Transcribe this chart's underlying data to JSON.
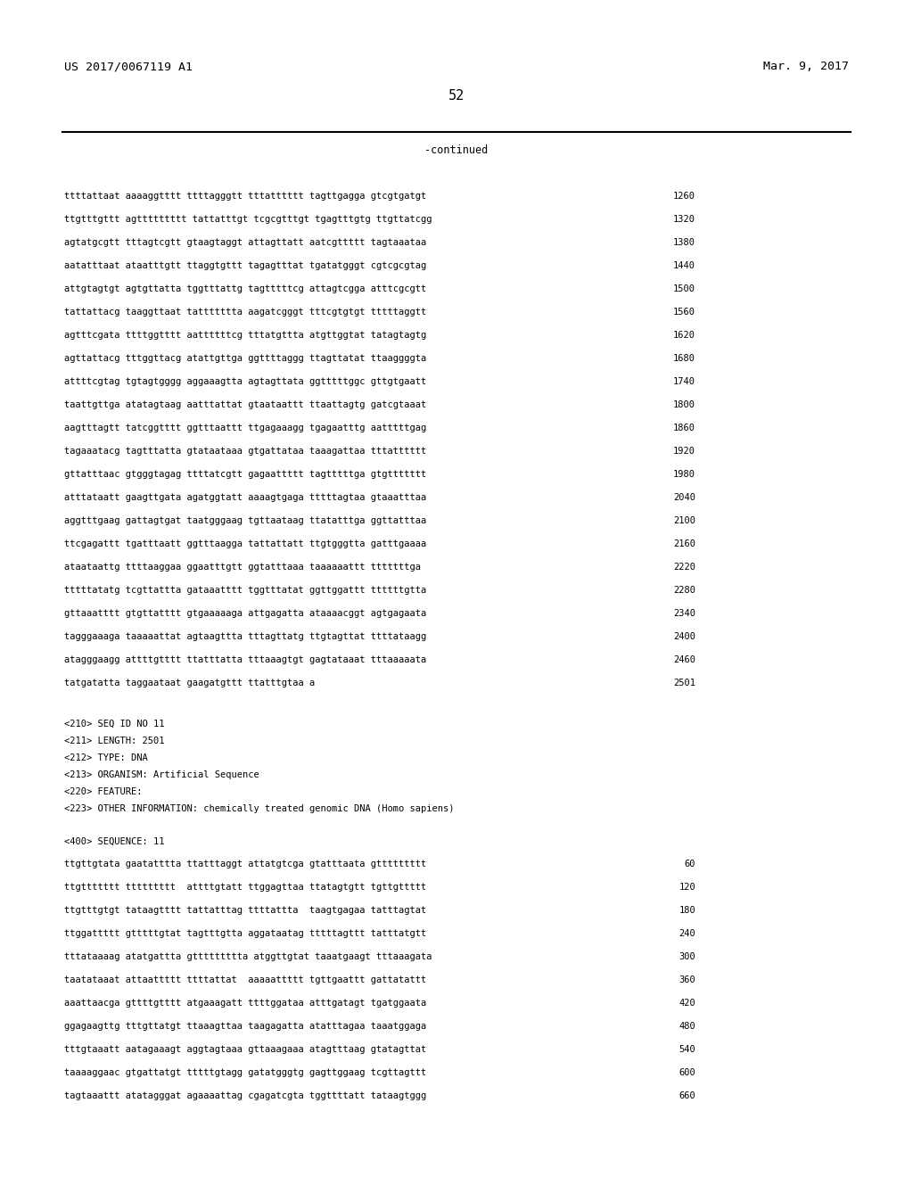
{
  "left_header": "US 2017/0067119 A1",
  "right_header": "Mar. 9, 2017",
  "page_number": "52",
  "continued_label": "-continued",
  "sequence_lines_top": [
    {
      "text": "ttttattaat aaaaggtttt ttttagggtt tttatttttt tagttgagga gtcgtgatgt",
      "num": "1260"
    },
    {
      "text": "ttgtttgttt agttttttttt tattatttgt tcgcgtttgt tgagtttgtg ttgttatcgg",
      "num": "1320"
    },
    {
      "text": "agtatgcgtt tttagtcgtt gtaagtaggt attagttatt aatcgttttt tagtaaataa",
      "num": "1380"
    },
    {
      "text": "aatatttaat ataatttgtt ttaggtgttt tagagtttat tgatatgggt cgtcgcgtag",
      "num": "1440"
    },
    {
      "text": "attgtagtgt agtgttatta tggtttattg tagtttttcg attagtcgga atttcgcgtt",
      "num": "1500"
    },
    {
      "text": "tattattacg taaggttaat tattttttta aagatcgggt tttcgtgtgt tttttaggtt",
      "num": "1560"
    },
    {
      "text": "agtttcgata ttttggtttt aattttttcg tttatgttta atgttggtat tatagtagtg",
      "num": "1620"
    },
    {
      "text": "agttattacg tttggttacg atattgttga ggttttaggg ttagttatat ttaaggggta",
      "num": "1680"
    },
    {
      "text": "attttcgtag tgtagtgggg aggaaagtta agtagttata ggtttttggc gttgtgaatt",
      "num": "1740"
    },
    {
      "text": "taattgttga atatagtaag aatttattat gtaataattt ttaattagtg gatcgtaaat",
      "num": "1800"
    },
    {
      "text": "aagtttagtt tatcggtttt ggtttaattt ttgagaaagg tgagaatttg aatttttgag",
      "num": "1860"
    },
    {
      "text": "tagaaatacg tagtttatta gtataataaa gtgattataa taaagattaa tttatttttt",
      "num": "1920"
    },
    {
      "text": "gttatttaac gtgggtagag ttttatcgtt gagaattttt tagtttttga gtgttttttt",
      "num": "1980"
    },
    {
      "text": "atttataatt gaagttgata agatggtatt aaaagtgaga tttttagtaa gtaaatttaa",
      "num": "2040"
    },
    {
      "text": "aggtttgaag gattagtgat taatgggaag tgttaataag ttatatttga ggttatttaa",
      "num": "2100"
    },
    {
      "text": "ttcgagattt tgatttaatt ggtttaagga tattattatt ttgtgggtta gatttgaaaa",
      "num": "2160"
    },
    {
      "text": "ataataattg ttttaaggaa ggaatttgtt ggtatttaaa taaaaaattt tttttttga",
      "num": "2220"
    },
    {
      "text": "tttttatatg tcgttattta gataaatttt tggtttatat ggttggattt ttttttgtta",
      "num": "2280"
    },
    {
      "text": "gttaaatttt gtgttatttt gtgaaaaaga attgagatta ataaaacggt agtgagaata",
      "num": "2340"
    },
    {
      "text": "tagggaaaga taaaaattat agtaagttta tttagttatg ttgtagttat ttttataagg",
      "num": "2400"
    },
    {
      "text": "atagggaagg attttgtttt ttatttatta tttaaagtgt gagtataaat tttaaaaata",
      "num": "2460"
    },
    {
      "text": "tatgatatta taggaataat gaagatgttt ttatttgtaa a",
      "num": "2501"
    }
  ],
  "metadata_lines": [
    "<210> SEQ ID NO 11",
    "<211> LENGTH: 2501",
    "<212> TYPE: DNA",
    "<213> ORGANISM: Artificial Sequence",
    "<220> FEATURE:",
    "<223> OTHER INFORMATION: chemically treated genomic DNA (Homo sapiens)"
  ],
  "sequence_label": "<400> SEQUENCE: 11",
  "sequence_lines_bottom": [
    {
      "text": "ttgttgtata gaatatttta ttatttaggt attatgtcga gtatttaata gttttttttt",
      "num": "60"
    },
    {
      "text": "ttgttttttt ttttttttt  attttgtatt ttggagttaa ttatagtgtt tgttgttttt",
      "num": "120"
    },
    {
      "text": "ttgtttgtgt tataagtttt tattatttag ttttattta  taagtgagaa tatttagtat",
      "num": "180"
    },
    {
      "text": "ttggattttt gtttttgtat tagtttgtta aggataatag tttttagttt tatttatgtt",
      "num": "240"
    },
    {
      "text": "tttataaaag atatgattta gttttttttta atggttgtat taaatgaagt tttaaagata",
      "num": "300"
    },
    {
      "text": "taatataaat attaattttt ttttattat  aaaaattttt tgttgaattt gattatattt",
      "num": "360"
    },
    {
      "text": "aaattaacga gttttgtttt atgaaagatt ttttggataa atttgatagt tgatggaata",
      "num": "420"
    },
    {
      "text": "ggagaagttg tttgttatgt ttaaagttaa taagagatta atatttagaa taaatggaga",
      "num": "480"
    },
    {
      "text": "tttgtaaatt aatagaaagt aggtagtaaa gttaaagaaa atagtttaag gtatagttat",
      "num": "540"
    },
    {
      "text": "taaaaggaac gtgattatgt tttttgtagg gatatgggtg gagttggaag tcgttagttt",
      "num": "600"
    },
    {
      "text": "tagtaaattt atatagggat agaaaattag cgagatcgta tggttttatt tataagtggg",
      "num": "660"
    }
  ],
  "background_color": "#ffffff",
  "text_color": "#000000",
  "line_color": "#000000",
  "font_size_header": 9.5,
  "font_size_page": 11,
  "font_size_body": 7.5,
  "font_size_continued": 8.5
}
